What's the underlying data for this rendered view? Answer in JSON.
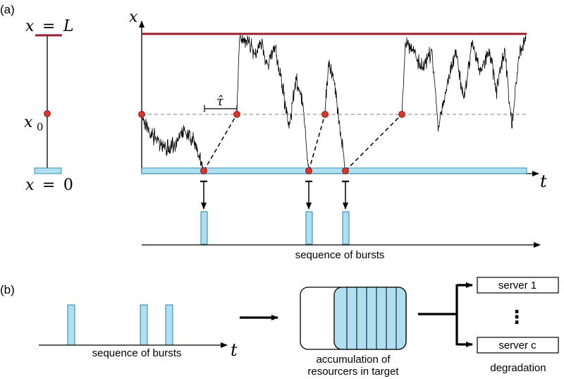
{
  "panel_a": {
    "label": "(a)",
    "left_scale": {
      "top_label_var": "x",
      "top_label_eq": "=",
      "top_label_val": "L",
      "mid_label_var": "x",
      "mid_label_sub": "0",
      "bottom_label_var": "x",
      "bottom_label_eq": "=",
      "bottom_label_val": "0"
    },
    "plot": {
      "y_axis_label": "x",
      "x_axis_label": "t",
      "tau_label": "τ̂"
    },
    "bursts": {
      "caption": "sequence of bursts"
    }
  },
  "panel_b": {
    "label": "(b)",
    "bursts_caption": "sequence of bursts",
    "t_label": "t",
    "queue_caption_line1": "accumulation of",
    "queue_caption_line2": "resourcers in target",
    "server_top": "server 1",
    "server_dots": "⋮",
    "server_bottom": "server c",
    "degradation": "degradation"
  },
  "colors": {
    "absorbing_top": "#9b1b30",
    "reflecting_bottom": "#aee0f2",
    "marker": "#d9352b",
    "trajectory": "#000000",
    "dashed": "#999999"
  }
}
